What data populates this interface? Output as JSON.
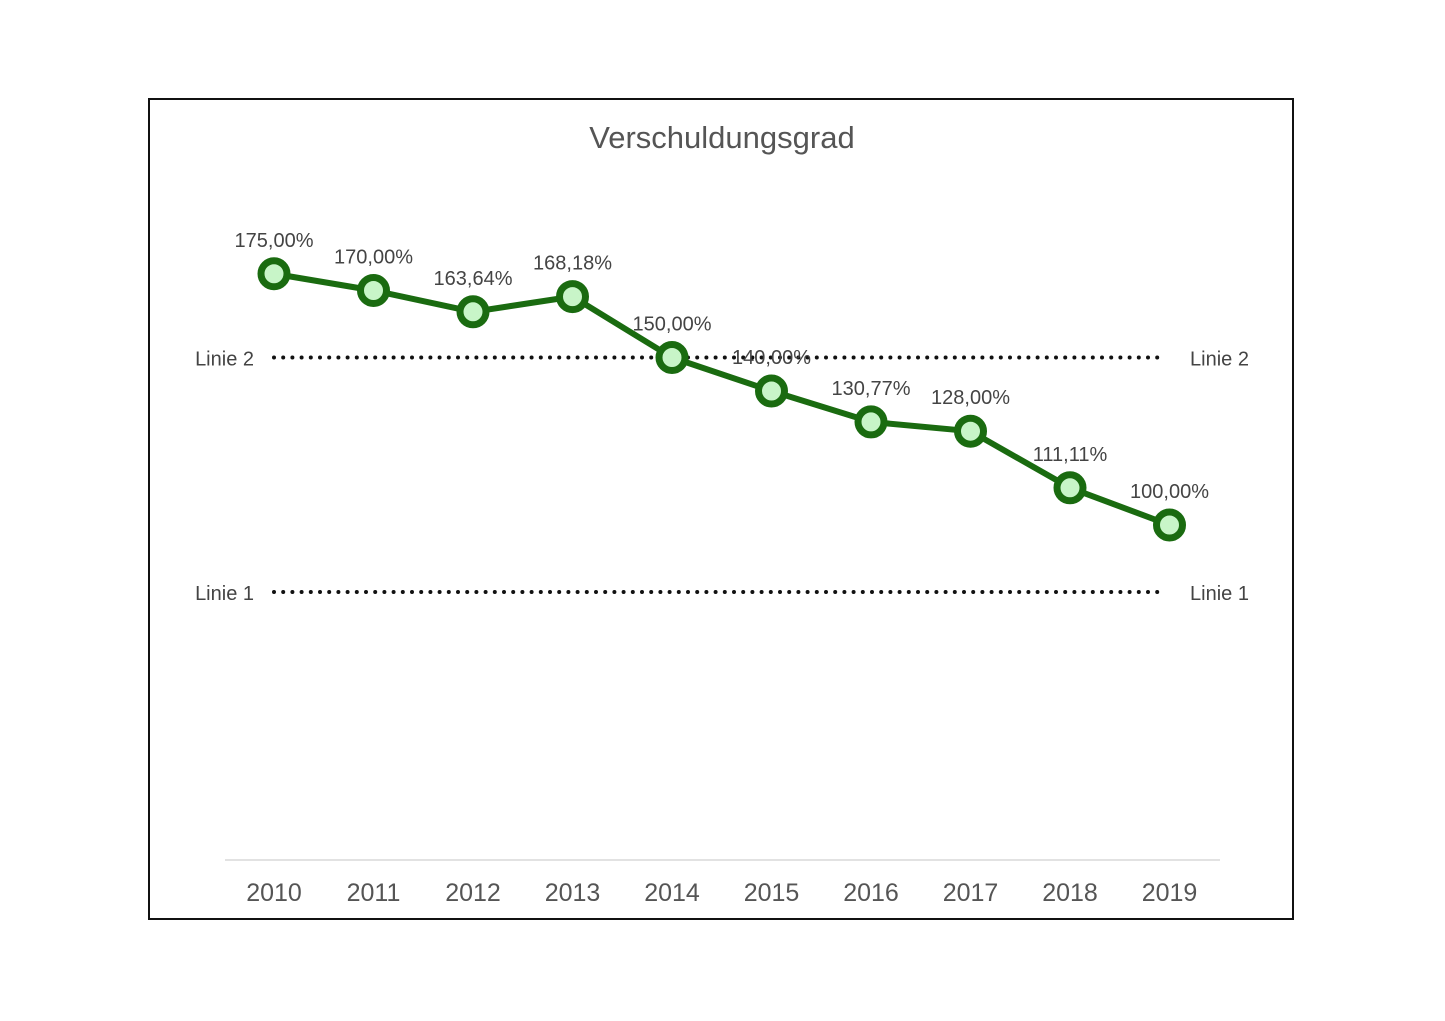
{
  "chart_data": {
    "type": "line",
    "title": "Verschuldungsgrad",
    "xlabel": "",
    "ylabel": "",
    "categories": [
      "2010",
      "2011",
      "2012",
      "2013",
      "2014",
      "2015",
      "2016",
      "2017",
      "2018",
      "2019"
    ],
    "values": [
      175.0,
      170.0,
      163.64,
      168.18,
      150.0,
      140.0,
      130.77,
      128.0,
      111.11,
      100.0
    ],
    "data_labels": [
      "175,00%",
      "170,00%",
      "163,64%",
      "168,18%",
      "150,00%",
      "140,00%",
      "130,77%",
      "128,00%",
      "111,11%",
      "100,00%"
    ],
    "ylim": [
      0,
      200
    ],
    "y_axis_visible": false,
    "grid": false,
    "reference_lines": [
      {
        "label": "Linie 2",
        "value": 150
      },
      {
        "label": "Linie 1",
        "value": 80
      }
    ],
    "colors": {
      "line": "#1a6b10",
      "marker_fill": "#c8f5c8",
      "reference": "#111111",
      "text": "#444444",
      "title": "#555555",
      "baseline": "#d9d9d9"
    }
  }
}
